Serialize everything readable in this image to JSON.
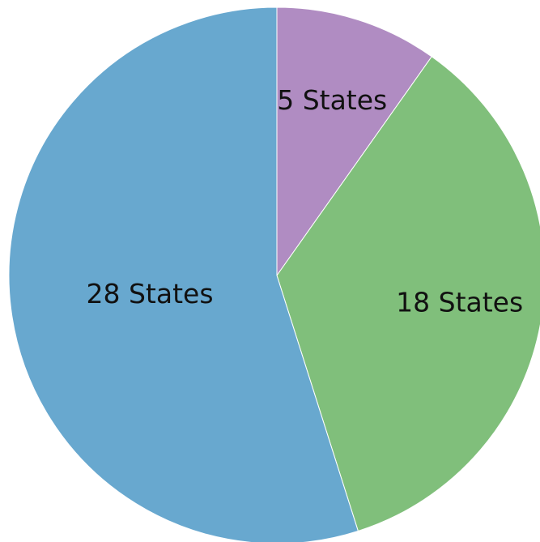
{
  "chart_data": {
    "type": "pie",
    "categories": [
      null,
      null,
      null
    ],
    "values": [
      5,
      18,
      28
    ],
    "value_labels": [
      "5 States",
      "18 States",
      "28 States"
    ],
    "colors": [
      "#b08cc2",
      "#80bf7b",
      "#68a8cf"
    ]
  }
}
